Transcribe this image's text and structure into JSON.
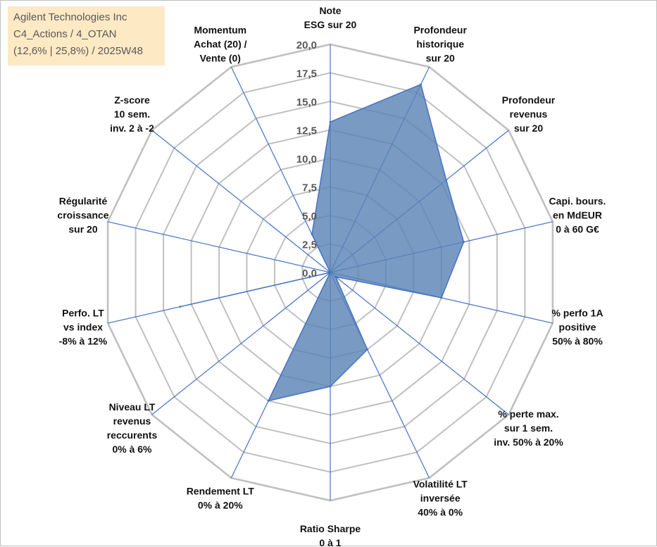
{
  "title_box": {
    "line1": "Agilent Technologies Inc",
    "line2": "C4_Actions / 4_OTAN",
    "line3": "(12,6% | 25,8%) / 2025W48"
  },
  "colors": {
    "grid": "#c0c0c0",
    "spoke": "#4472c4",
    "fill": "#5b84b6",
    "stroke": "#4472c4",
    "title_bg": "#fde9c4"
  },
  "chart_data": {
    "type": "radar",
    "grid": true,
    "rmin": 0,
    "rmax": 20,
    "ticks": [
      "0,0",
      "2,5",
      "5,0",
      "7,5",
      "10,0",
      "12,5",
      "15,0",
      "17,5",
      "20,0"
    ],
    "axes": [
      {
        "label": [
          "Note",
          "ESG sur 20"
        ]
      },
      {
        "label": [
          "Profondeur",
          "historique",
          "sur 20"
        ]
      },
      {
        "label": [
          "Profondeur",
          "revenus",
          "sur 20"
        ]
      },
      {
        "label": [
          "Capi. bours.",
          "en MdEUR",
          "0 à 60 G€"
        ]
      },
      {
        "label": [
          "% perfo 1A",
          "positive",
          "50% à 80%"
        ]
      },
      {
        "label": [
          "% perte max.",
          "sur 1 sem.",
          "inv. 50% à 20%"
        ]
      },
      {
        "label": [
          "Volatilité LT",
          "inversée",
          "40% à 0%"
        ]
      },
      {
        "label": [
          "Ratio Sharpe",
          "0 à 1"
        ]
      },
      {
        "label": [
          "Rendement LT",
          "0% à 20%"
        ]
      },
      {
        "label": [
          "Niveau LT",
          "revenus",
          "reccurents",
          "0% à 6%"
        ]
      },
      {
        "label": [
          "Perfo. LT",
          "vs index",
          "-8% à 12%"
        ]
      },
      {
        "label": [
          "Régularité",
          "croissance",
          "sur 20"
        ]
      },
      {
        "label": [
          "Z-score",
          "10 sem.",
          "inv. 2 à -2"
        ]
      },
      {
        "label": [
          "Momentum",
          "Achat (20) /",
          "Vente (0)"
        ]
      }
    ],
    "series": [
      {
        "values": [
          13.2,
          18.3,
          13.0,
          12.0,
          10.0,
          0.6,
          7.5,
          10.0,
          12.5,
          0.0,
          13.5,
          0.0,
          0.0,
          3.7
        ]
      }
    ]
  }
}
